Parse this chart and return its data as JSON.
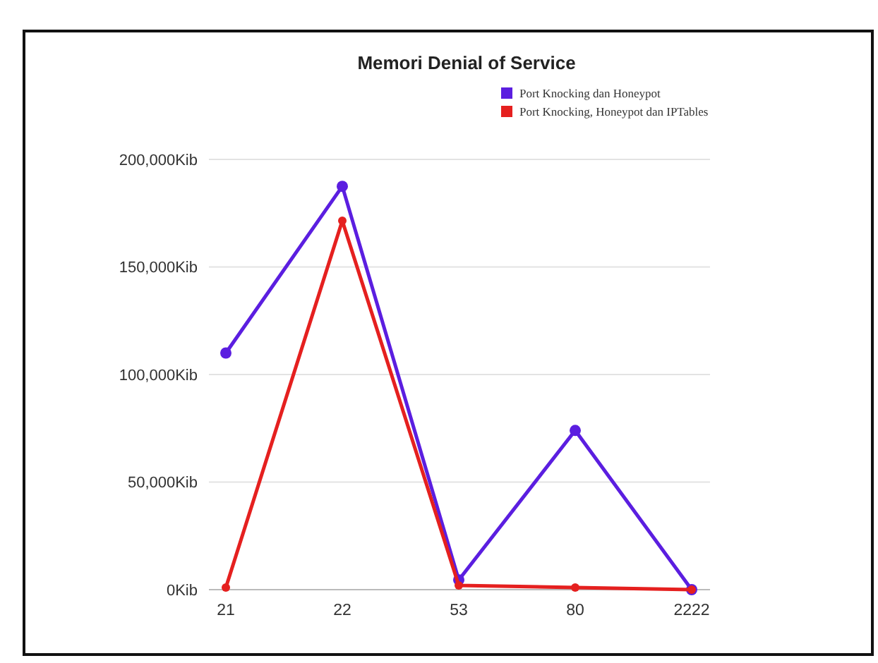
{
  "chart_data": {
    "type": "line",
    "title": "Memori Denial of Service",
    "categories": [
      "21",
      "22",
      "53",
      "80",
      "2222"
    ],
    "series": [
      {
        "name": "Port Knocking dan Honeypot",
        "color": "#5b1ee0",
        "values": [
          110000,
          187500,
          4500,
          74000,
          0
        ]
      },
      {
        "name": "Port Knocking, Honeypot dan IPTables",
        "color": "#e5201f",
        "values": [
          1000,
          171500,
          2000,
          1000,
          0
        ]
      }
    ],
    "ylim": [
      0,
      200000
    ],
    "yticks": [
      {
        "value": 0,
        "label": "0Kib"
      },
      {
        "value": 50000,
        "label": "50,000Kib"
      },
      {
        "value": 100000,
        "label": "100,000Kib"
      },
      {
        "value": 150000,
        "label": "150,000Kib"
      },
      {
        "value": 200000,
        "label": "200,000Kib"
      }
    ],
    "grid": "y",
    "legend": "top right",
    "marker": "circle",
    "line_style": "solid"
  }
}
